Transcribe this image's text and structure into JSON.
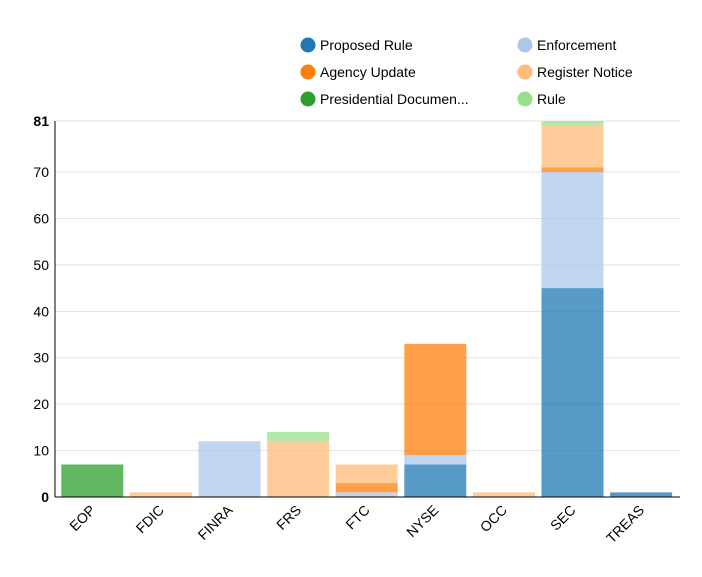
{
  "chart_data": {
    "type": "bar",
    "stacked": true,
    "categories": [
      "EOP",
      "FDIC",
      "FINRA",
      "FRS",
      "FTC",
      "NYSE",
      "OCC",
      "SEC",
      "TREAS"
    ],
    "series": [
      {
        "name": "Proposed Rule",
        "color": "#1f77b4",
        "values": [
          0,
          0,
          0,
          0,
          0,
          7,
          0,
          45,
          1
        ]
      },
      {
        "name": "Enforcement",
        "color": "#aec7e8",
        "values": [
          0,
          0,
          12,
          0,
          1,
          2,
          0,
          25,
          0
        ]
      },
      {
        "name": "Agency Update",
        "color": "#ff7f0e",
        "values": [
          0,
          0,
          0,
          0,
          2,
          24,
          0,
          1,
          0
        ]
      },
      {
        "name": "Register Notice",
        "color": "#ffbb78",
        "values": [
          0,
          1,
          0,
          12,
          4,
          0,
          1,
          9,
          0
        ]
      },
      {
        "name": "Presidential Documen...",
        "color": "#2ca02c",
        "values": [
          7,
          0,
          0,
          0,
          0,
          0,
          0,
          0,
          0
        ]
      },
      {
        "name": "Rule",
        "color": "#98df8a",
        "values": [
          0,
          0,
          0,
          2,
          0,
          0,
          0,
          1,
          0
        ]
      }
    ],
    "yticks": [
      "0",
      "10",
      "20",
      "30",
      "40",
      "50",
      "60",
      "70",
      "81"
    ],
    "ylim": [
      0,
      81
    ],
    "grid": true,
    "legend_position": "top-right",
    "title": "",
    "xlabel": "",
    "ylabel": ""
  }
}
